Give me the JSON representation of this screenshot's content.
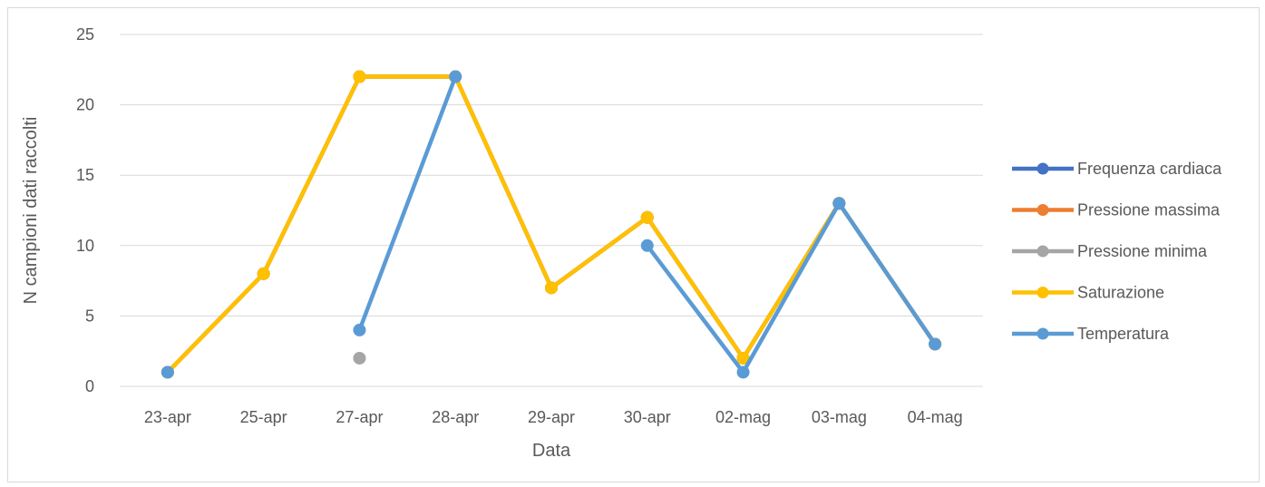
{
  "chart_data": {
    "type": "line",
    "title": "",
    "xlabel": "Data",
    "ylabel": "N campioni dati raccolti",
    "ylim": [
      0,
      25
    ],
    "yticks": [
      0,
      5,
      10,
      15,
      20,
      25
    ],
    "grid": true,
    "legend_position": "right",
    "categories": [
      "23-apr",
      "25-apr",
      "27-apr",
      "28-apr",
      "29-apr",
      "30-apr",
      "02-mag",
      "03-mag",
      "04-mag"
    ],
    "series": [
      {
        "name": "Frequenza cardiaca",
        "color": "#4472c4",
        "values": [
          1,
          8,
          22,
          22,
          7,
          12,
          2,
          13,
          3
        ]
      },
      {
        "name": "Pressione massima",
        "color": "#ed7d31",
        "values": [
          1,
          8,
          22,
          22,
          7,
          12,
          2,
          13,
          3
        ]
      },
      {
        "name": "Pressione minima",
        "color": "#a5a5a5",
        "values": [
          null,
          null,
          2,
          null,
          null,
          null,
          null,
          null,
          null
        ]
      },
      {
        "name": "Saturazione",
        "color": "#ffc000",
        "values": [
          1,
          8,
          22,
          22,
          7,
          12,
          2,
          13,
          3
        ]
      },
      {
        "name": "Temperatura",
        "color": "#5b9bd5",
        "values": [
          1,
          null,
          4,
          22,
          null,
          10,
          1,
          13,
          3
        ]
      }
    ]
  }
}
